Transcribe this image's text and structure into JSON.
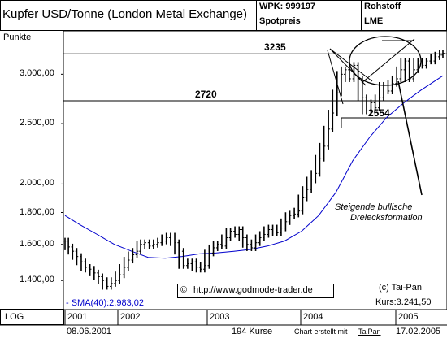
{
  "header": {
    "title": "Kupfer USD/Tonne (London Metal Exchange)",
    "wpk": "WPK: 999197",
    "price_type": "Spotpreis",
    "category": "Rohstoff",
    "exchange": "LME"
  },
  "yaxis_caption": "Punkte",
  "footer": {
    "scale": "LOG",
    "start_date": "08.06.2001",
    "count": "194 Kurse",
    "credit_prefix": "Chart erstellt mit",
    "credit_brand": "TaiPan",
    "end_date": "17.02.2005"
  },
  "colors": {
    "price": "#000000",
    "sma": "#0000cc",
    "box_border": "#000000",
    "background": "#ffffff"
  },
  "chart_data": {
    "type": "ohlc",
    "title": "Kupfer USD/Tonne (London Metal Exchange)",
    "ylabel": "Punkte",
    "yscale": "log",
    "ylim": [
      1265,
      3500
    ],
    "yticks": [
      {
        "value": 1400,
        "label": "1.400,00"
      },
      {
        "value": 1600,
        "label": "1.600,00"
      },
      {
        "value": 1800,
        "label": "1.800,00"
      },
      {
        "value": 2000,
        "label": "2.000,00"
      },
      {
        "value": 2500,
        "label": "2.500,00"
      },
      {
        "value": 3000,
        "label": "3.000,00"
      }
    ],
    "xticks": [
      "2001",
      "2002",
      "2003",
      "2004",
      "2005"
    ],
    "xrange": [
      "2001-06-08",
      "2005-02-17"
    ],
    "series": [
      {
        "name": "Kupfer",
        "style": "bar",
        "points": [
          [
            "2001-06-08",
            1620
          ],
          [
            "2001-06-20",
            1585
          ],
          [
            "2001-07-05",
            1560
          ],
          [
            "2001-07-20",
            1530
          ],
          [
            "2001-08-05",
            1500
          ],
          [
            "2001-08-20",
            1470
          ],
          [
            "2001-09-05",
            1460
          ],
          [
            "2001-09-20",
            1440
          ],
          [
            "2001-10-05",
            1420
          ],
          [
            "2001-10-20",
            1400
          ],
          [
            "2001-11-05",
            1370
          ],
          [
            "2001-11-20",
            1385
          ],
          [
            "2001-12-05",
            1400
          ],
          [
            "2001-12-20",
            1430
          ],
          [
            "2002-01-05",
            1470
          ],
          [
            "2002-01-20",
            1510
          ],
          [
            "2002-02-05",
            1540
          ],
          [
            "2002-02-20",
            1560
          ],
          [
            "2002-03-05",
            1600
          ],
          [
            "2002-03-20",
            1610
          ],
          [
            "2002-04-05",
            1590
          ],
          [
            "2002-04-20",
            1600
          ],
          [
            "2002-05-05",
            1610
          ],
          [
            "2002-05-20",
            1620
          ],
          [
            "2002-06-05",
            1640
          ],
          [
            "2002-06-20",
            1650
          ],
          [
            "2002-07-05",
            1610
          ],
          [
            "2002-07-20",
            1560
          ],
          [
            "2002-08-05",
            1480
          ],
          [
            "2002-08-20",
            1490
          ],
          [
            "2002-09-05",
            1500
          ],
          [
            "2002-09-20",
            1470
          ],
          [
            "2002-10-05",
            1460
          ],
          [
            "2002-10-20",
            1480
          ],
          [
            "2002-11-05",
            1550
          ],
          [
            "2002-11-20",
            1580
          ],
          [
            "2002-12-05",
            1600
          ],
          [
            "2002-12-20",
            1590
          ],
          [
            "2003-01-05",
            1640
          ],
          [
            "2003-01-20",
            1680
          ],
          [
            "2003-02-05",
            1660
          ],
          [
            "2003-02-20",
            1690
          ],
          [
            "2003-03-05",
            1640
          ],
          [
            "2003-03-20",
            1600
          ],
          [
            "2003-04-05",
            1580
          ],
          [
            "2003-04-20",
            1610
          ],
          [
            "2003-05-05",
            1640
          ],
          [
            "2003-05-20",
            1660
          ],
          [
            "2003-06-05",
            1690
          ],
          [
            "2003-06-20",
            1700
          ],
          [
            "2003-07-05",
            1670
          ],
          [
            "2003-07-20",
            1700
          ],
          [
            "2003-08-05",
            1740
          ],
          [
            "2003-08-20",
            1780
          ],
          [
            "2003-09-05",
            1790
          ],
          [
            "2003-09-20",
            1810
          ],
          [
            "2003-10-05",
            1900
          ],
          [
            "2003-10-20",
            1960
          ],
          [
            "2003-11-05",
            2030
          ],
          [
            "2003-11-20",
            2080
          ],
          [
            "2003-12-05",
            2200
          ],
          [
            "2003-12-20",
            2300
          ],
          [
            "2004-01-05",
            2450
          ],
          [
            "2004-01-20",
            2600
          ],
          [
            "2004-02-05",
            2800
          ],
          [
            "2004-02-20",
            3000
          ],
          [
            "2004-03-05",
            3050
          ],
          [
            "2004-03-20",
            2950
          ],
          [
            "2004-04-05",
            3100
          ],
          [
            "2004-04-20",
            2950
          ],
          [
            "2004-05-05",
            2750
          ],
          [
            "2004-05-20",
            2620
          ],
          [
            "2004-06-05",
            2700
          ],
          [
            "2004-06-20",
            2650
          ],
          [
            "2004-07-05",
            2750
          ],
          [
            "2004-07-20",
            2880
          ],
          [
            "2004-08-05",
            2820
          ],
          [
            "2004-08-20",
            2900
          ],
          [
            "2004-09-05",
            2950
          ],
          [
            "2004-09-20",
            3050
          ],
          [
            "2004-10-05",
            3150
          ],
          [
            "2004-10-20",
            2950
          ],
          [
            "2004-11-05",
            3050
          ],
          [
            "2004-11-20",
            3150
          ],
          [
            "2004-12-05",
            3100
          ],
          [
            "2004-12-20",
            3150
          ],
          [
            "2005-01-05",
            3150
          ],
          [
            "2005-01-20",
            3200
          ],
          [
            "2005-02-05",
            3220
          ],
          [
            "2005-02-17",
            3241
          ]
        ]
      },
      {
        "name": "SMA(40)",
        "style": "line",
        "color": "#0000cc",
        "points": [
          [
            "2001-06-08",
            1780
          ],
          [
            "2001-08-01",
            1720
          ],
          [
            "2001-10-01",
            1660
          ],
          [
            "2001-12-01",
            1600
          ],
          [
            "2002-02-01",
            1560
          ],
          [
            "2002-04-01",
            1525
          ],
          [
            "2002-06-01",
            1520
          ],
          [
            "2002-08-01",
            1530
          ],
          [
            "2002-10-01",
            1545
          ],
          [
            "2002-12-01",
            1550
          ],
          [
            "2003-02-01",
            1560
          ],
          [
            "2003-04-01",
            1570
          ],
          [
            "2003-06-01",
            1590
          ],
          [
            "2003-08-01",
            1620
          ],
          [
            "2003-10-01",
            1680
          ],
          [
            "2003-12-01",
            1780
          ],
          [
            "2004-02-01",
            1940
          ],
          [
            "2004-04-01",
            2180
          ],
          [
            "2004-06-01",
            2380
          ],
          [
            "2004-08-01",
            2560
          ],
          [
            "2004-10-01",
            2700
          ],
          [
            "2004-12-01",
            2830
          ],
          [
            "2005-02-17",
            2983
          ]
        ]
      }
    ],
    "annotations": {
      "levels": [
        {
          "value": 3235,
          "label": "3235"
        },
        {
          "value": 2720,
          "label": "2720"
        },
        {
          "value": 2554,
          "label": "2554"
        }
      ],
      "pattern_text": [
        "Steigende bullische",
        "Dreiecksformation"
      ],
      "url": "http://www.godmode-trader.de",
      "copyright": "(c) Tai-Pan",
      "last_price": "Kurs:3.241,50",
      "sma_label": "- SMA(40):2.983,02"
    }
  }
}
